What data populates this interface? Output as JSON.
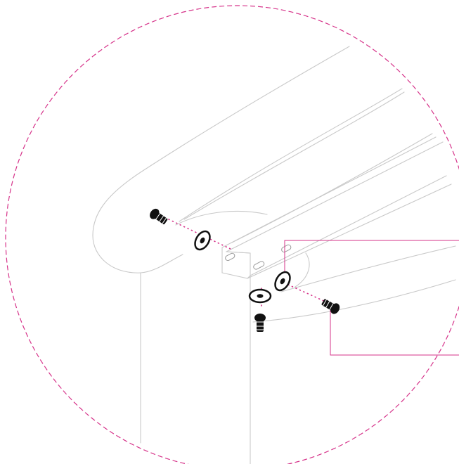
{
  "diagram": {
    "kind": "assembly-detail-view",
    "accent_color": "#d6338a",
    "line_color": "#c9c9c9",
    "hardware_color": "#111111",
    "parts": [
      {
        "id": "bolt-left",
        "icon": "hex-bolt-icon"
      },
      {
        "id": "washer-left",
        "icon": "washer-icon"
      },
      {
        "id": "washer-center",
        "icon": "washer-icon"
      },
      {
        "id": "washer-right",
        "icon": "washer-icon"
      },
      {
        "id": "bolt-bottom",
        "icon": "hex-bolt-icon"
      },
      {
        "id": "bolt-right",
        "icon": "hex-bolt-icon"
      }
    ]
  }
}
